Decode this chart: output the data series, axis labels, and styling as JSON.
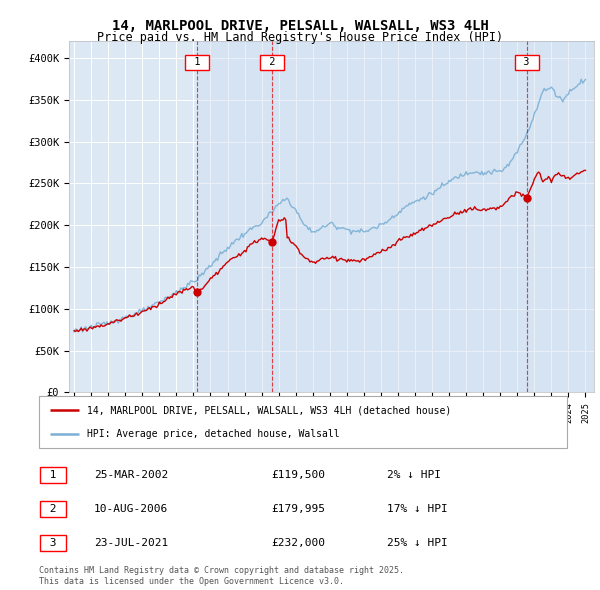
{
  "title_line1": "14, MARLPOOL DRIVE, PELSALL, WALSALL, WS3 4LH",
  "title_line2": "Price paid vs. HM Land Registry's House Price Index (HPI)",
  "background_color": "#ffffff",
  "plot_bg_color": "#dce9f5",
  "grid_color": "#ffffff",
  "hpi_line_color": "#7bafd4",
  "price_line_color": "#cc0000",
  "shade_color": "#c8d8ee",
  "legend_label_price": "14, MARLPOOL DRIVE, PELSALL, WALSALL, WS3 4LH (detached house)",
  "legend_label_hpi": "HPI: Average price, detached house, Walsall",
  "transactions": [
    {
      "num": 1,
      "date_dec": 2002.23,
      "price": 119500,
      "label": "25-MAR-2002",
      "amount": "£119,500",
      "pct": "2% ↓ HPI"
    },
    {
      "num": 2,
      "date_dec": 2006.61,
      "price": 179995,
      "label": "10-AUG-2006",
      "amount": "£179,995",
      "pct": "17% ↓ HPI"
    },
    {
      "num": 3,
      "date_dec": 2021.56,
      "price": 232000,
      "label": "23-JUL-2021",
      "amount": "£232,000",
      "pct": "25% ↓ HPI"
    }
  ],
  "footer_line1": "Contains HM Land Registry data © Crown copyright and database right 2025.",
  "footer_line2": "This data is licensed under the Open Government Licence v3.0.",
  "ylim_min": 0,
  "ylim_max": 420000,
  "yticks": [
    0,
    50000,
    100000,
    150000,
    200000,
    250000,
    300000,
    350000,
    400000
  ],
  "xlim_min": 1994.7,
  "xlim_max": 2025.5
}
